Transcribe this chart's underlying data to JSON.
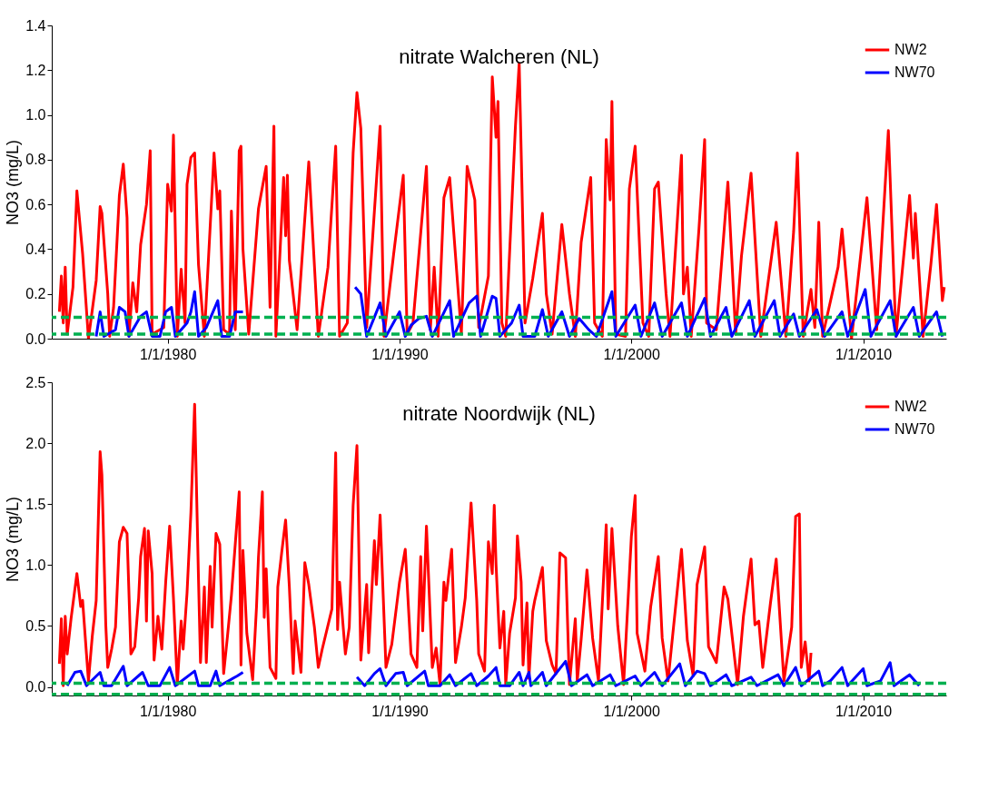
{
  "chart_data": [
    {
      "type": "line",
      "title": "nitrate Walcheren (NL)",
      "ylabel": "NO3 (mg/L)",
      "legend": "top right",
      "grid": false,
      "line_style": "solid",
      "xlim": [
        "1975-01-01",
        "2013-08-01"
      ],
      "xticks": [
        {
          "value": "1980-01-01",
          "label": "1/1/1980"
        },
        {
          "value": "1990-01-01",
          "label": "1/1/1990"
        },
        {
          "value": "2000-01-01",
          "label": "1/1/2000"
        },
        {
          "value": "2010-01-01",
          "label": "1/1/2010"
        }
      ],
      "ylim": [
        0,
        1.4
      ],
      "yticks": [
        {
          "value": 0,
          "label": "0.0"
        },
        0.2,
        0.4,
        0.6,
        0.8,
        {
          "value": 1,
          "label": "1.0"
        },
        1.2,
        1.4
      ],
      "ref_lines": [
        {
          "axis": "y",
          "value": 0.095,
          "color": "#00b050",
          "line_style": "dashed"
        },
        {
          "axis": "y",
          "value": 0.02,
          "color": "#00b050",
          "line_style": "dashed"
        }
      ],
      "series": [
        {
          "name": "NW2",
          "color": "#ff0000",
          "x": [
            "1975-05",
            "1975-06",
            "1975-07",
            "1975-08",
            "1975-09",
            "1975-12",
            "1976-02",
            "1976-05",
            "1976-08",
            "1976-12",
            "1977-02",
            "1977-03",
            "1977-06",
            "1977-07",
            "1977-09",
            "1977-12",
            "1978-02",
            "1978-04",
            "1978-05",
            "1978-07",
            "1978-09",
            "1978-11",
            "1979-02",
            "1979-04",
            "1979-05",
            "1979-11",
            "1980-01",
            "1980-03",
            "1980-04",
            "1980-06",
            "1980-08",
            "1980-10",
            "1980-11",
            "1981-01",
            "1981-03",
            "1981-05",
            "1981-08",
            "1982-01",
            "1982-03",
            "1982-04",
            "1982-06",
            "1982-09",
            "1982-10",
            "1982-12",
            "1983-02",
            "1983-03",
            "1983-04",
            "1983-07",
            "1983-12",
            "1984-04",
            "1984-06",
            "1984-08",
            "1984-09",
            "1985-01",
            "1985-02",
            "1985-03",
            "1985-04",
            "1985-08",
            "1986-02",
            "1986-07",
            "1986-12",
            "1987-04",
            "1987-06",
            "1987-10",
            "1988-01",
            "1988-03",
            "1988-05",
            "1988-08",
            "1988-12",
            "1989-03",
            "1989-05",
            "1989-10",
            "1990-03",
            "1990-05",
            "1990-08",
            "1991-03",
            "1991-05",
            "1991-07",
            "1991-09",
            "1991-12",
            "1992-03",
            "1992-09",
            "1992-12",
            "1993-04",
            "1993-06",
            "1993-11",
            "1994-01",
            "1994-03",
            "1994-04",
            "1994-06",
            "1994-08",
            "1995-01",
            "1995-03",
            "1995-06",
            "1995-10",
            "1996-03",
            "1996-05",
            "1996-08",
            "1997-01",
            "1997-05",
            "1997-08",
            "1997-11",
            "1998-04",
            "1998-06",
            "1998-10",
            "1998-12",
            "1999-02",
            "1999-03",
            "1999-05",
            "1999-10",
            "1999-12",
            "2000-03",
            "2000-07",
            "2000-10",
            "2001-01",
            "2001-03",
            "2001-07",
            "2001-09",
            "2002-03",
            "2002-04",
            "2002-06",
            "2002-08",
            "2002-12",
            "2003-03",
            "2003-04",
            "2003-09",
            "2004-03",
            "2004-07",
            "2004-10",
            "2005-03",
            "2005-08",
            "2006-04",
            "2006-09",
            "2007-01",
            "2007-03",
            "2007-06",
            "2007-10",
            "2007-12",
            "2008-02",
            "2008-04",
            "2008-12",
            "2009-02",
            "2009-07",
            "2010-03",
            "2010-08",
            "2011-02",
            "2011-06",
            "2012-01",
            "2012-03",
            "2012-04",
            "2012-08",
            "2012-12",
            "2013-03",
            "2013-06",
            "2013-07"
          ],
          "values": [
            0.12,
            0.28,
            0.07,
            0.32,
            0.02,
            0.23,
            0.66,
            0.38,
            0.0,
            0.26,
            0.59,
            0.56,
            0.2,
            0.01,
            0.14,
            0.64,
            0.78,
            0.54,
            0.01,
            0.25,
            0.12,
            0.42,
            0.6,
            0.84,
            0.02,
            0.05,
            0.69,
            0.57,
            0.91,
            0.01,
            0.31,
            0.07,
            0.69,
            0.81,
            0.83,
            0.33,
            0.01,
            0.83,
            0.58,
            0.66,
            0.04,
            0.02,
            0.57,
            0.04,
            0.84,
            0.86,
            0.4,
            0.02,
            0.58,
            0.77,
            0.14,
            0.95,
            0.01,
            0.72,
            0.46,
            0.73,
            0.35,
            0.04,
            0.79,
            0.01,
            0.32,
            0.86,
            0.01,
            0.07,
            0.83,
            1.1,
            0.94,
            0.05,
            0.57,
            0.95,
            0.01,
            0.38,
            0.73,
            0.02,
            0.07,
            0.77,
            0.04,
            0.32,
            0.01,
            0.63,
            0.72,
            0.02,
            0.77,
            0.62,
            0.05,
            0.28,
            1.17,
            0.9,
            1.06,
            0.07,
            0.01,
            0.95,
            1.23,
            0.07,
            0.27,
            0.56,
            0.2,
            0.02,
            0.51,
            0.2,
            0.01,
            0.43,
            0.72,
            0.07,
            0.01,
            0.89,
            0.62,
            1.06,
            0.02,
            0.01,
            0.67,
            0.86,
            0.07,
            0.01,
            0.67,
            0.7,
            0.2,
            0.01,
            0.82,
            0.2,
            0.32,
            0.01,
            0.49,
            0.89,
            0.07,
            0.04,
            0.7,
            0.02,
            0.37,
            0.74,
            0.01,
            0.52,
            0.01,
            0.48,
            0.83,
            0.01,
            0.22,
            0.05,
            0.52,
            0.01,
            0.32,
            0.49,
            0.0,
            0.63,
            0.04,
            0.93,
            0.01,
            0.64,
            0.36,
            0.56,
            0.01,
            0.33,
            0.6,
            0.17,
            0.23
          ]
        },
        {
          "name": "NW70",
          "color": "#0000ff",
          "x": [
            "1976-12",
            "1977-02",
            "1977-04",
            "1977-10",
            "1977-12",
            "1978-03",
            "1978-05",
            "1978-11",
            "1979-02",
            "1979-05",
            "1979-09",
            "1979-12",
            "1980-03",
            "1980-05",
            "1980-11",
            "1981-01",
            "1981-03",
            "1981-05",
            "1981-09",
            "1982-03",
            "1982-05",
            "1982-09",
            "1982-12",
            "1983-04",
            "1985-01",
            "1988-02",
            "1988-05",
            "1988-08",
            "1989-03",
            "1989-06",
            "1990-01",
            "1990-04",
            "1990-07",
            "1990-11",
            "1991-03",
            "1991-06",
            "1992-03",
            "1992-05",
            "1993-01",
            "1993-05",
            "1993-07",
            "1994-01",
            "1994-03",
            "1994-05",
            "1994-11",
            "1995-03",
            "1995-05",
            "1995-11",
            "1996-03",
            "1996-06",
            "1997-01",
            "1997-05",
            "1997-10",
            "1998-03",
            "1998-07",
            "1999-03",
            "1999-05",
            "2000-03",
            "2000-06",
            "2001-01",
            "2001-05",
            "2002-03",
            "2002-06",
            "2003-03",
            "2003-06",
            "2004-02",
            "2004-05",
            "2005-02",
            "2005-05",
            "2006-03",
            "2006-06",
            "2007-01",
            "2007-04",
            "2008-01",
            "2008-05",
            "2009-02",
            "2009-05",
            "2010-02",
            "2010-05",
            "2011-03",
            "2011-06",
            "2012-03",
            "2012-06",
            "2013-03",
            "2013-06"
          ],
          "values": [
            0.01,
            0.12,
            0.01,
            0.04,
            0.14,
            0.12,
            0.01,
            0.1,
            0.12,
            0.01,
            0.01,
            0.12,
            0.14,
            0.01,
            0.07,
            0.12,
            0.21,
            0.01,
            0.05,
            0.17,
            0.01,
            0.01,
            0.12,
            0.12,
            null,
            0.23,
            0.2,
            0.01,
            0.16,
            0.01,
            0.12,
            0.01,
            0.06,
            0.09,
            0.1,
            0.01,
            0.17,
            0.01,
            0.16,
            0.19,
            0.01,
            0.19,
            0.18,
            0.01,
            0.07,
            0.15,
            0.01,
            0.01,
            0.13,
            0.01,
            0.12,
            0.01,
            0.09,
            0.04,
            0.01,
            0.21,
            0.01,
            0.15,
            0.01,
            0.16,
            0.01,
            0.16,
            0.01,
            0.18,
            0.01,
            0.14,
            0.01,
            0.17,
            0.01,
            0.17,
            0.01,
            0.11,
            0.01,
            0.13,
            0.01,
            0.12,
            0.01,
            0.22,
            0.01,
            0.17,
            0.01,
            0.14,
            0.01,
            0.12,
            0.01
          ]
        }
      ]
    },
    {
      "type": "line",
      "title": "nitrate Noordwijk (NL)",
      "ylabel": "NO3 (mg/L)",
      "legend": "top right",
      "grid": false,
      "line_style": "solid",
      "xlim": [
        "1975-01-01",
        "2013-08-01"
      ],
      "xticks": [
        {
          "value": "1980-01-01",
          "label": "1/1/1980"
        },
        {
          "value": "1990-01-01",
          "label": "1/1/1990"
        },
        {
          "value": "2000-01-01",
          "label": "1/1/2000"
        },
        {
          "value": "2010-01-01",
          "label": "1/1/2010"
        }
      ],
      "ylim": [
        -0.07,
        2.5
      ],
      "yticks": [
        {
          "value": 0,
          "label": "0.0"
        },
        0.5,
        {
          "value": 1,
          "label": "1.0"
        },
        1.5,
        {
          "value": 2,
          "label": "2.0"
        },
        2.5
      ],
      "ref_lines": [
        {
          "axis": "y",
          "value": 0.03,
          "color": "#00b050",
          "line_style": "dashed"
        },
        {
          "axis": "y",
          "value": -0.06,
          "color": "#00b050",
          "line_style": "dashed"
        }
      ],
      "series": [
        {
          "name": "NW2",
          "color": "#ff0000",
          "x": [
            "1975-05",
            "1975-06",
            "1975-07",
            "1975-08",
            "1975-09",
            "1975-11",
            "1976-02",
            "1976-04",
            "1976-05",
            "1976-07",
            "1976-08",
            "1976-10",
            "1976-12",
            "1977-02",
            "1977-03",
            "1977-05",
            "1977-06",
            "1977-08",
            "1977-10",
            "1977-12",
            "1978-02",
            "1978-04",
            "1978-06",
            "1978-08",
            "1978-10",
            "1978-11",
            "1979-01",
            "1979-02",
            "1979-03",
            "1979-05",
            "1979-06",
            "1979-08",
            "1979-10",
            "1979-12",
            "1980-02",
            "1980-04",
            "1980-06",
            "1980-08",
            "1980-09",
            "1980-11",
            "1981-01",
            "1981-03",
            "1981-05",
            "1981-06",
            "1981-08",
            "1981-09",
            "1981-11",
            "1981-12",
            "1982-02",
            "1982-04",
            "1982-06",
            "1982-08",
            "1982-10",
            "1983-02",
            "1983-03",
            "1983-04",
            "1983-06",
            "1983-09",
            "1983-11",
            "1983-12",
            "1984-02",
            "1984-03",
            "1984-04",
            "1984-06",
            "1984-09",
            "1984-10",
            "1984-12",
            "1985-02",
            "1985-04",
            "1985-06",
            "1985-07",
            "1985-10",
            "1985-12",
            "1986-02",
            "1986-05",
            "1986-07",
            "1986-09",
            "1987-02",
            "1987-04",
            "1987-05",
            "1987-06",
            "1987-09",
            "1987-11",
            "1988-01",
            "1988-03",
            "1988-05",
            "1988-08",
            "1988-09",
            "1988-12",
            "1989-01",
            "1989-03",
            "1989-06",
            "1989-09",
            "1990-01",
            "1990-04",
            "1990-07",
            "1990-10",
            "1990-12",
            "1991-01",
            "1991-03",
            "1991-06",
            "1991-08",
            "1991-10",
            "1991-12",
            "1992-01",
            "1992-04",
            "1992-06",
            "1992-09",
            "1992-11",
            "1993-02",
            "1993-05",
            "1993-06",
            "1993-09",
            "1993-11",
            "1994-01",
            "1994-02",
            "1994-03",
            "1994-05",
            "1994-07",
            "1994-08",
            "1994-10",
            "1995-01",
            "1995-02",
            "1995-04",
            "1995-05",
            "1995-07",
            "1995-08",
            "1995-10",
            "1995-11",
            "1996-03",
            "1996-05",
            "1996-08",
            "1996-10",
            "1996-12",
            "1997-03",
            "1997-05",
            "1997-08",
            "1997-09",
            "1997-11",
            "1998-02",
            "1998-05",
            "1998-08",
            "1998-12",
            "1999-01",
            "1999-03",
            "1999-06",
            "1999-09",
            "2000-01",
            "2000-03",
            "2000-04",
            "2000-08",
            "2000-11",
            "2001-03",
            "2001-05",
            "2001-08",
            "2002-01",
            "2002-03",
            "2002-06",
            "2002-09",
            "2002-11",
            "2003-03",
            "2003-05",
            "2003-09",
            "2004-01",
            "2004-03",
            "2004-08",
            "2004-11",
            "2005-03",
            "2005-05",
            "2005-07",
            "2005-09",
            "2006-01",
            "2006-04",
            "2006-08",
            "2006-12",
            "2007-02",
            "2007-04",
            "2007-05",
            "2007-07",
            "2007-09",
            "2007-10"
          ],
          "values": [
            0.19,
            0.56,
            0.01,
            0.58,
            0.27,
            0.56,
            0.93,
            0.66,
            0.71,
            0.27,
            0.05,
            0.42,
            0.71,
            1.93,
            1.74,
            0.51,
            0.16,
            0.31,
            0.49,
            1.19,
            1.31,
            1.26,
            0.27,
            0.33,
            0.73,
            1.07,
            1.3,
            0.54,
            1.28,
            0.93,
            0.22,
            0.58,
            0.31,
            0.86,
            1.32,
            0.73,
            0.02,
            0.54,
            0.31,
            0.77,
            1.43,
            2.32,
            0.88,
            0.2,
            0.82,
            0.2,
            0.99,
            0.49,
            1.26,
            1.17,
            0.11,
            0.42,
            0.75,
            1.6,
            0.18,
            1.12,
            0.44,
            0.06,
            0.66,
            1.06,
            1.6,
            0.57,
            0.97,
            0.16,
            0.07,
            0.82,
            1.1,
            1.37,
            0.82,
            0.11,
            0.54,
            0.12,
            1.02,
            0.84,
            0.49,
            0.16,
            0.31,
            0.64,
            1.92,
            0.47,
            0.86,
            0.27,
            0.49,
            1.49,
            1.98,
            0.22,
            0.84,
            0.28,
            1.2,
            0.84,
            1.41,
            0.16,
            0.35,
            0.86,
            1.13,
            0.27,
            0.16,
            1.07,
            0.46,
            1.32,
            0.16,
            0.32,
            0.02,
            0.86,
            0.71,
            1.13,
            0.2,
            0.49,
            0.73,
            1.51,
            0.71,
            0.27,
            0.13,
            1.19,
            0.93,
            1.49,
            1.01,
            0.32,
            0.62,
            0.02,
            0.44,
            0.73,
            1.24,
            0.86,
            0.18,
            0.69,
            0.07,
            0.62,
            0.71,
            0.98,
            0.38,
            0.18,
            0.11,
            1.1,
            1.06,
            0.02,
            0.56,
            0.05,
            0.39,
            0.96,
            0.4,
            0.05,
            1.33,
            0.64,
            1.3,
            0.5,
            0.02,
            1.23,
            1.57,
            0.44,
            0.13,
            0.66,
            1.07,
            0.4,
            0.05,
            0.83,
            1.13,
            0.38,
            0.09,
            0.84,
            1.15,
            0.33,
            0.2,
            0.82,
            0.72,
            0.02,
            0.58,
            1.05,
            0.51,
            0.54,
            0.16,
            0.69,
            1.05,
            0.05,
            0.49,
            1.4,
            1.42,
            0.16,
            0.37,
            0.05,
            0.28
          ]
        },
        {
          "name": "NW70",
          "color": "#0000ff",
          "x": [
            "1975-09",
            "1976-01",
            "1976-04",
            "1976-07",
            "1977-02",
            "1977-04",
            "1977-08",
            "1978-02",
            "1978-04",
            "1978-12",
            "1979-03",
            "1979-09",
            "1980-02",
            "1980-05",
            "1981-03",
            "1981-05",
            "1981-11",
            "1982-02",
            "1982-04",
            "1983-01",
            "1983-04",
            "1985-01",
            "1988-03",
            "1988-07",
            "1988-12",
            "1989-03",
            "1989-06",
            "1989-11",
            "1990-03",
            "1990-05",
            "1991-02",
            "1991-04",
            "1991-10",
            "1992-03",
            "1992-06",
            "1993-02",
            "1993-05",
            "1993-11",
            "1994-03",
            "1994-05",
            "1994-10",
            "1995-03",
            "1995-05",
            "1995-08",
            "1995-09",
            "1996-03",
            "1996-05",
            "1997-03",
            "1997-06",
            "1998-02",
            "1998-05",
            "1999-02",
            "1999-05",
            "2000-03",
            "2000-06",
            "2001-01",
            "2001-05",
            "2002-02",
            "2002-05",
            "2002-11",
            "2003-03",
            "2003-06",
            "2004-02",
            "2004-05",
            "2005-03",
            "2005-06",
            "2006-05",
            "2006-08",
            "2007-02",
            "2007-05",
            "2008-02",
            "2008-04",
            "2008-08",
            "2009-02",
            "2009-05",
            "2010-01",
            "2010-03",
            "2010-10",
            "2011-03",
            "2011-05",
            "2012-01",
            "2012-06"
          ],
          "values": [
            0.01,
            0.12,
            0.13,
            0.01,
            0.12,
            0.01,
            0.01,
            0.17,
            0.01,
            0.12,
            0.01,
            0.01,
            0.16,
            0.01,
            0.13,
            0.01,
            0.01,
            0.13,
            0.01,
            0.09,
            0.12,
            null,
            0.08,
            0.01,
            0.11,
            0.15,
            0.01,
            0.11,
            0.12,
            0.01,
            0.13,
            0.01,
            0.01,
            0.1,
            0.01,
            0.11,
            0.01,
            0.09,
            0.16,
            0.01,
            0.01,
            0.12,
            0.01,
            0.12,
            0.01,
            0.12,
            0.01,
            0.21,
            0.01,
            0.1,
            0.01,
            0.1,
            0.01,
            0.09,
            0.01,
            0.12,
            0.01,
            0.19,
            0.01,
            0.13,
            0.11,
            0.01,
            0.1,
            0.01,
            0.08,
            0.01,
            0.1,
            0.01,
            0.16,
            0.01,
            0.13,
            0.01,
            0.05,
            0.16,
            0.01,
            0.15,
            0.01,
            0.05,
            0.2,
            0.01,
            0.1,
            0.01
          ]
        }
      ]
    }
  ]
}
